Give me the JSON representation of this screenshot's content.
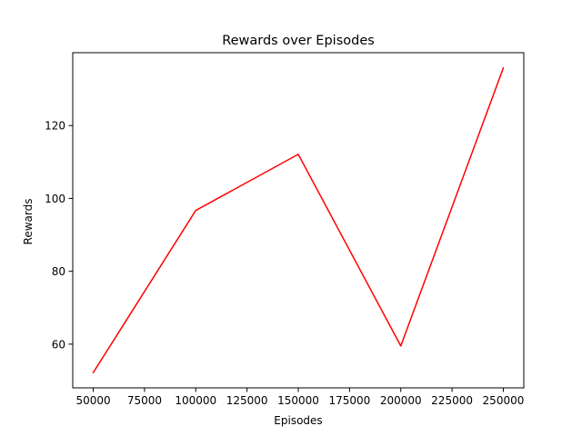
{
  "chart_data": {
    "type": "line",
    "title": "Rewards over Episodes",
    "xlabel": "Episodes",
    "ylabel": "Rewards",
    "xlim": [
      40000,
      260000
    ],
    "ylim": [
      48,
      140
    ],
    "xticks": [
      50000,
      75000,
      100000,
      125000,
      150000,
      175000,
      200000,
      225000,
      250000
    ],
    "yticks": [
      60,
      80,
      100,
      120
    ],
    "grid": false,
    "series": [
      {
        "color": "#ff0000",
        "x": [
          50000,
          100000,
          150000,
          200000,
          250000
        ],
        "y": [
          52.2,
          96.7,
          112.1,
          59.5,
          135.8
        ]
      }
    ]
  }
}
